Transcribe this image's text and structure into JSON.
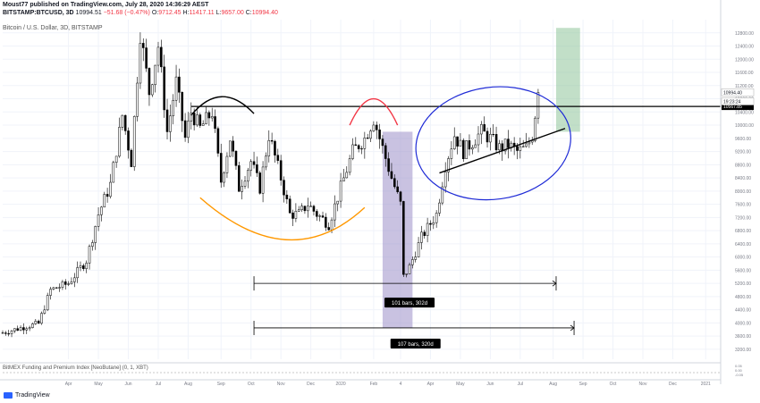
{
  "header": {
    "publish_line": "Moust77 published on TradingView.com, July 28, 2020 14:36:29 AEST",
    "symbol": "BITSTAMP:BTCUSD, 3D",
    "last": "10994.51",
    "change": "−51.68 (−0.47%)",
    "o_label": "O:",
    "o": "9712.45",
    "h_label": "H:",
    "h": "11417.11",
    "l_label": "L:",
    "l": "9657.00",
    "c_label": "C:",
    "c": "10994.40"
  },
  "chart_title": "Bitcoin / U.S. Dollar, 3D, BITSTAMP",
  "indicator_label": "BitMEX Funding and Premium Index [NeoButane] (0, 1, XBT)",
  "branding": "TradingView",
  "colors": {
    "up": "#ffffff",
    "down": "#000000",
    "candle_outline": "#000000",
    "grid": "#f0f3fa",
    "axis_text": "#787b86",
    "orange_arc": "#ff9800",
    "red_arc": "#f23645",
    "blue_ellipse": "#1e2ad6",
    "black_arc": "#000000",
    "purple_zone": "#9c8fc9",
    "green_zone": "#8fc49a",
    "label_bg": "#000000",
    "label_fg": "#ffffff"
  },
  "chart_data": {
    "type": "candlestick",
    "title": "Bitcoin / U.S. Dollar, 3D, BITSTAMP",
    "ylim": [
      2900,
      13200
    ],
    "y_ticks": [
      3200,
      3600,
      4000,
      4400,
      4800,
      5200,
      5600,
      6000,
      6400,
      6800,
      7200,
      7600,
      8000,
      8400,
      8800,
      9200,
      9600,
      10000,
      10400,
      10800,
      11200,
      11600,
      12000,
      12400,
      12800
    ],
    "x_ticks": [
      {
        "label": "Apr",
        "i": 22
      },
      {
        "label": "May",
        "i": 32
      },
      {
        "label": "Jun",
        "i": 42
      },
      {
        "label": "Jul",
        "i": 52
      },
      {
        "label": "Aug",
        "i": 62
      },
      {
        "label": "Sep",
        "i": 73
      },
      {
        "label": "Oct",
        "i": 83
      },
      {
        "label": "Nov",
        "i": 93
      },
      {
        "label": "Dec",
        "i": 103
      },
      {
        "label": "2020",
        "i": 113
      },
      {
        "label": "Feb",
        "i": 124
      },
      {
        "label": "4",
        "i": 133
      },
      {
        "label": "Apr",
        "i": 143
      },
      {
        "label": "May",
        "i": 153
      },
      {
        "label": "Jun",
        "i": 163
      },
      {
        "label": "Jul",
        "i": 173
      },
      {
        "label": "Aug",
        "i": 184
      },
      {
        "label": "Sep",
        "i": 194
      },
      {
        "label": "Oct",
        "i": 204
      },
      {
        "label": "Nov",
        "i": 214
      },
      {
        "label": "Dec",
        "i": 224
      },
      {
        "label": "2021",
        "i": 235
      }
    ],
    "price_path": [
      [
        0,
        3700
      ],
      [
        8,
        3900
      ],
      [
        12,
        3980
      ],
      [
        16,
        5000
      ],
      [
        22,
        5200
      ],
      [
        28,
        5900
      ],
      [
        32,
        7300
      ],
      [
        36,
        8200
      ],
      [
        40,
        10300
      ],
      [
        43,
        8900
      ],
      [
        46,
        12800
      ],
      [
        49,
        11000
      ],
      [
        52,
        12400
      ],
      [
        55,
        9800
      ],
      [
        58,
        11300
      ],
      [
        61,
        9600
      ],
      [
        63,
        10400
      ],
      [
        66,
        9900
      ],
      [
        70,
        10400
      ],
      [
        73,
        8300
      ],
      [
        76,
        9600
      ],
      [
        79,
        8100
      ],
      [
        83,
        8900
      ],
      [
        86,
        8100
      ],
      [
        89,
        9700
      ],
      [
        93,
        8400
      ],
      [
        96,
        7300
      ],
      [
        99,
        7300
      ],
      [
        102,
        7600
      ],
      [
        105,
        7300
      ],
      [
        109,
        7000
      ],
      [
        113,
        8100
      ],
      [
        117,
        9200
      ],
      [
        121,
        9600
      ],
      [
        124,
        10200
      ],
      [
        127,
        9300
      ],
      [
        130,
        8400
      ],
      [
        133,
        7600
      ],
      [
        134,
        5400
      ],
      [
        136,
        5700
      ],
      [
        140,
        6600
      ],
      [
        145,
        7300
      ],
      [
        148,
        8800
      ],
      [
        151,
        9700
      ],
      [
        154,
        9200
      ],
      [
        157,
        9500
      ],
      [
        160,
        9800
      ],
      [
        163,
        9600
      ],
      [
        166,
        9300
      ],
      [
        169,
        9400
      ],
      [
        172,
        9200
      ],
      [
        175,
        9300
      ],
      [
        177,
        9700
      ],
      [
        179,
        10994
      ]
    ],
    "resistance_level": {
      "value": 10567.85,
      "label": "10567.85"
    },
    "price_labels": [
      {
        "value": 10994.4,
        "label": "10994.40"
      },
      {
        "value": 10760,
        "label": "19:23:24"
      }
    ],
    "annotations": [
      {
        "type": "measure",
        "label": "101 bars, 302d",
        "from_i": 84,
        "to_i": 185,
        "price": 5200
      },
      {
        "type": "measure",
        "label": "107 bars, 320d",
        "from_i": 84,
        "to_i": 191,
        "price": 3850
      },
      {
        "type": "zone",
        "name": "purple",
        "from_i": 127,
        "to_i": 137,
        "top": 9800,
        "bottom": 3850
      },
      {
        "type": "zone",
        "name": "green",
        "from_i": 185,
        "to_i": 193,
        "top": 12950,
        "bottom": 9800
      },
      {
        "type": "trendline",
        "from": [
          146,
          8550
        ],
        "to": [
          188,
          9900
        ]
      }
    ],
    "indicator": {
      "name": "BitMEX Funding and Premium Index [NeoButane] (0, 1, XBT)",
      "y_ticks": [
        "0.05",
        "0.00",
        "-0.05"
      ]
    }
  }
}
